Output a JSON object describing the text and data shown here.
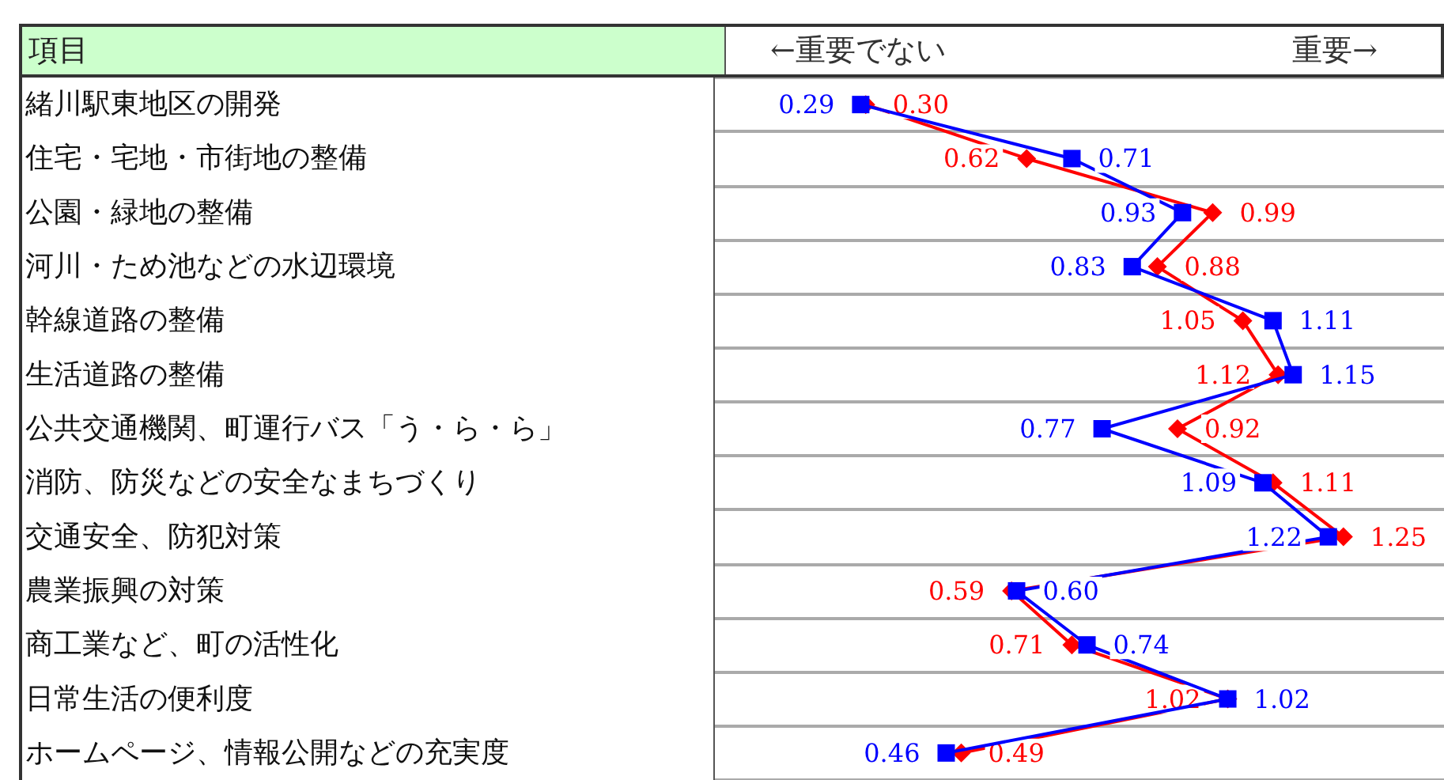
{
  "chart_data": {
    "type": "line",
    "orientation": "horizontal",
    "ylabel": "項目",
    "annotations": [
      "←重要でない",
      "重要→"
    ],
    "categories": [
      "緒川駅東地区の開発",
      "住宅・宅地・市街地の整備",
      "公園・緑地の整備",
      "河川・ため池などの水辺環境",
      "幹線道路の整備",
      "生活道路の整備",
      "公共交通機関、町運行バス「う・ら・ら」",
      "消防、防災などの安全なまちづくり",
      "交通安全、防犯対策",
      "農業振興の対策",
      "商工業など、町の活性化",
      "日常生活の便利度",
      "ホームページ、情報公開などの充実度"
    ],
    "series": [
      {
        "color": "#ff0000",
        "marker": "diamond",
        "values": [
          0.3,
          0.62,
          0.99,
          0.88,
          1.05,
          1.12,
          0.92,
          1.11,
          1.25,
          0.59,
          0.71,
          1.02,
          0.49
        ],
        "value_labels": [
          "0.30",
          "0.62",
          "0.99",
          "0.88",
          "1.05",
          "1.12",
          "0.92",
          "1.11",
          "1.25",
          "0.59",
          "0.71",
          "1.02",
          "0.49"
        ]
      },
      {
        "color": "#0000ff",
        "marker": "square",
        "values": [
          0.29,
          0.71,
          0.93,
          0.83,
          1.11,
          1.15,
          0.77,
          1.09,
          1.22,
          0.6,
          0.74,
          1.02,
          0.46
        ],
        "value_labels": [
          "0.29",
          "0.71",
          "0.93",
          "0.83",
          "1.11",
          "1.15",
          "0.77",
          "1.09",
          "1.22",
          "0.60",
          "0.74",
          "1.02",
          "0.46"
        ]
      }
    ],
    "xlim": [
      0,
      1.45
    ],
    "grid": "y",
    "tick_labels": "y"
  }
}
